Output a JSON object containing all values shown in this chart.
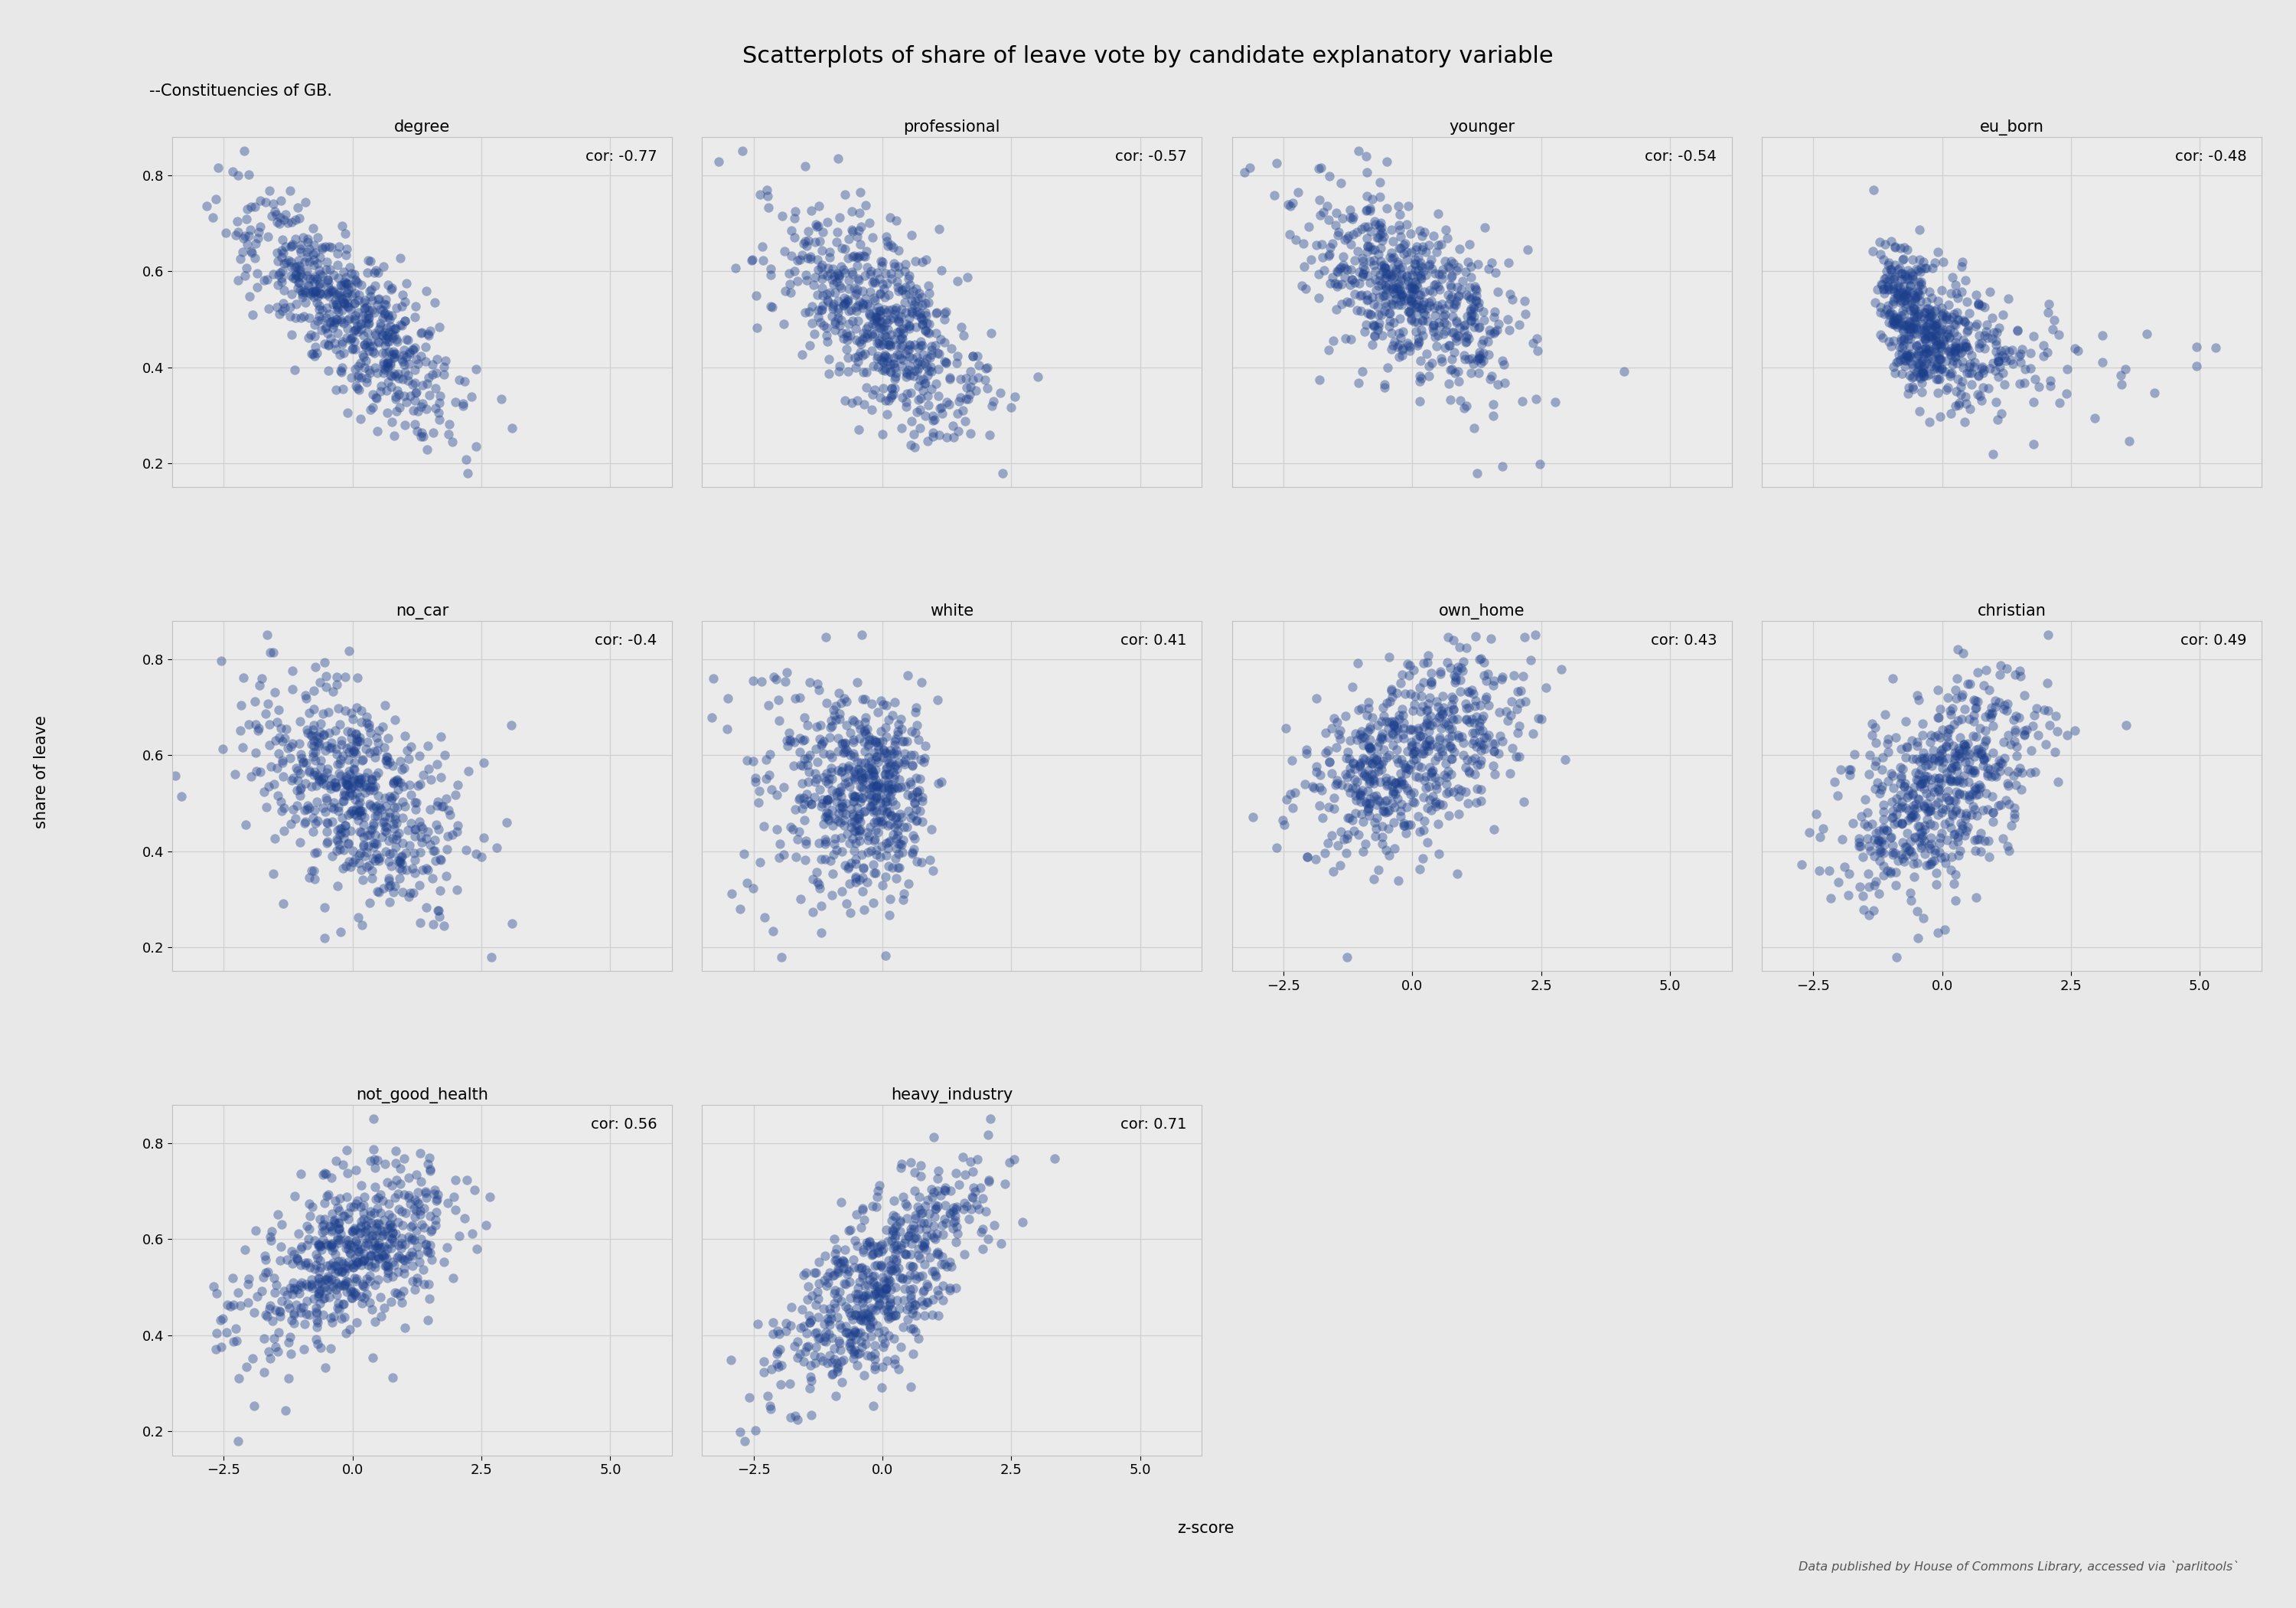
{
  "title": "Scatterplots of share of leave vote by candidate explanatory variable",
  "subtitle": "--Constituencies of GB.",
  "xlabel": "z-score",
  "ylabel": "share of leave",
  "source_note": "Data published by House of Commons Library, accessed via `parlitools`",
  "panels": [
    {
      "name": "degree",
      "cor": -0.77,
      "row": 0,
      "col": 0
    },
    {
      "name": "professional",
      "cor": -0.57,
      "row": 0,
      "col": 1
    },
    {
      "name": "younger",
      "cor": -0.54,
      "row": 0,
      "col": 2
    },
    {
      "name": "eu_born",
      "cor": -0.48,
      "row": 0,
      "col": 3
    },
    {
      "name": "no_car",
      "cor": -0.4,
      "row": 1,
      "col": 0
    },
    {
      "name": "white",
      "cor": 0.41,
      "row": 1,
      "col": 1
    },
    {
      "name": "own_home",
      "cor": 0.43,
      "row": 1,
      "col": 2
    },
    {
      "name": "christian",
      "cor": 0.49,
      "row": 1,
      "col": 3
    },
    {
      "name": "not_good_health",
      "cor": 0.56,
      "row": 2,
      "col": 0
    },
    {
      "name": "heavy_industry",
      "cor": 0.71,
      "row": 2,
      "col": 1
    }
  ],
  "n_points": 573,
  "dot_color": "#1c3f8c",
  "dot_alpha": 0.4,
  "dot_size": 80,
  "bg_color": "#e8e8e8",
  "grid_color": "#d0d0d0",
  "panel_bg": "#ebebeb",
  "ylim": [
    0.15,
    0.88
  ],
  "xlim": [
    -3.5,
    6.2
  ],
  "yticks": [
    0.2,
    0.4,
    0.6,
    0.8
  ],
  "xticks": [
    -2.5,
    0.0,
    2.5,
    5.0
  ],
  "title_fontsize": 22,
  "subtitle_fontsize": 15,
  "cor_fontsize": 14,
  "tick_fontsize": 13,
  "panel_title_fontsize": 15,
  "axis_label_fontsize": 15
}
